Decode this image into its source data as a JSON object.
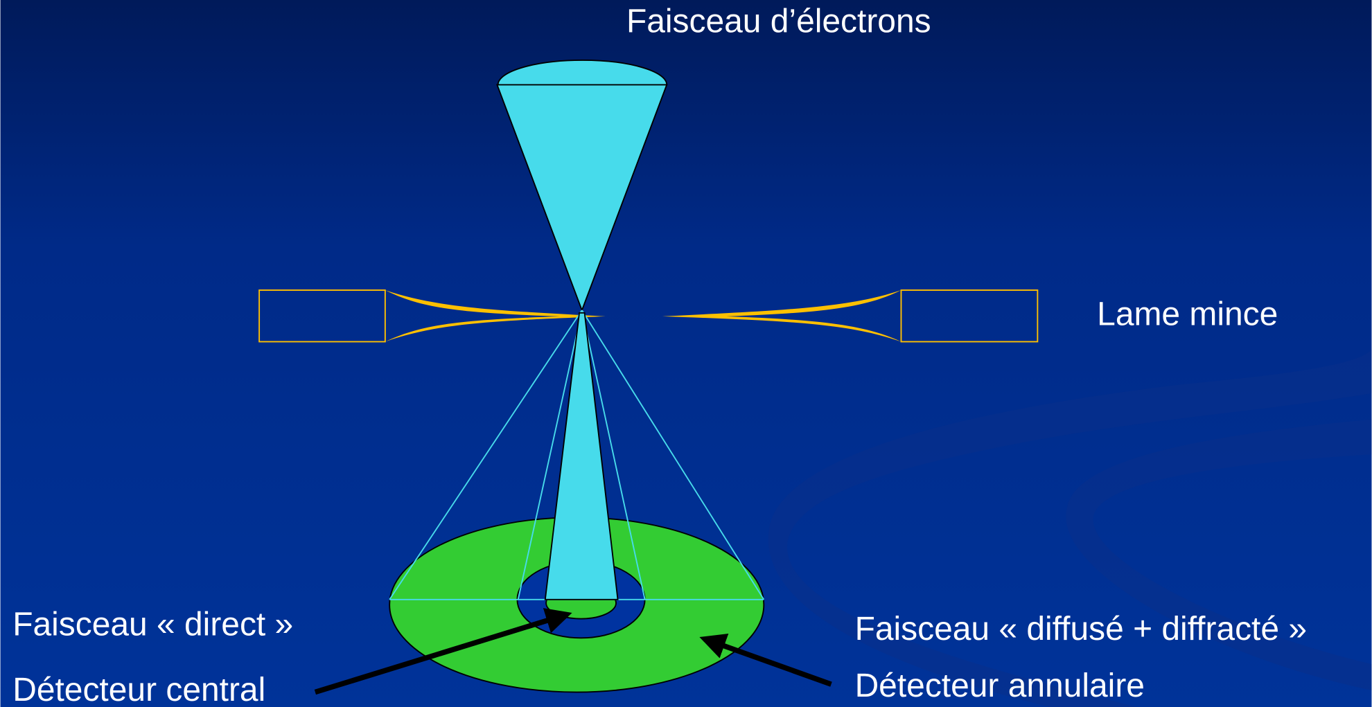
{
  "title": "Faisceau d’électrons",
  "labels": {
    "sample": "Lame mince",
    "direct_beam": "Faisceau « direct »",
    "central_detector": "Détecteur central",
    "scattered_beam": "Faisceau « diffusé + diffracté »",
    "annular_detector": "Détecteur annulaire"
  }
}
